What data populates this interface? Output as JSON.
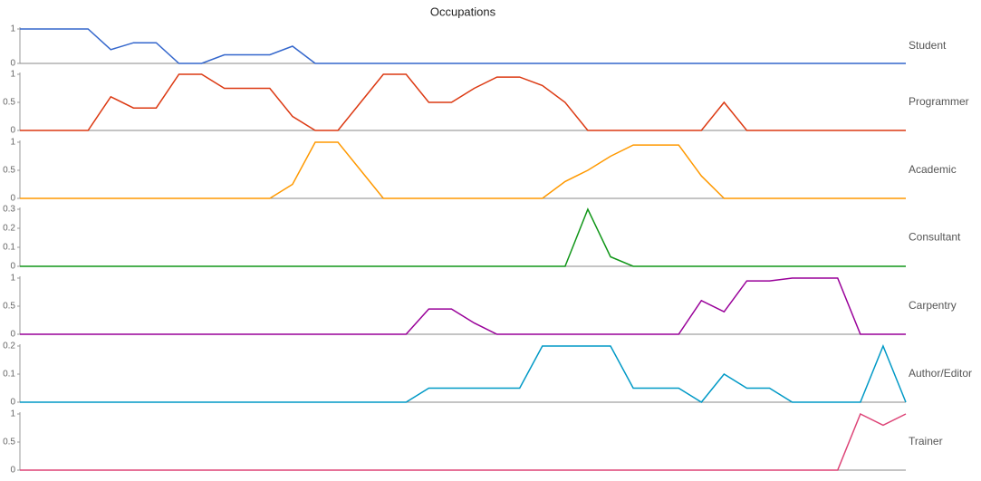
{
  "chart_data": {
    "type": "line",
    "title": "Occupations",
    "series": [
      {
        "name": "Student",
        "color": "#3366cc",
        "ylim": [
          0,
          1
        ],
        "yticks": [
          0,
          1
        ],
        "values": [
          1,
          1,
          1,
          1,
          0.4,
          0.6,
          0.6,
          0,
          0,
          0.25,
          0.25,
          0.25,
          0.5,
          0,
          0,
          0,
          0,
          0,
          0,
          0,
          0,
          0,
          0,
          0,
          0,
          0,
          0,
          0,
          0,
          0,
          0,
          0,
          0,
          0,
          0,
          0,
          0,
          0,
          0,
          0
        ]
      },
      {
        "name": "Programmer",
        "color": "#dc3912",
        "ylim": [
          0,
          1
        ],
        "yticks": [
          0,
          0.5,
          1
        ],
        "values": [
          0,
          0,
          0,
          0,
          0.6,
          0.4,
          0.4,
          1,
          1,
          0.75,
          0.75,
          0.75,
          0.25,
          0,
          0,
          0.5,
          1,
          1,
          0.5,
          0.5,
          0.75,
          0.95,
          0.95,
          0.8,
          0.5,
          0,
          0,
          0,
          0,
          0,
          0,
          0.5,
          0,
          0,
          0,
          0,
          0,
          0,
          0,
          0
        ]
      },
      {
        "name": "Academic",
        "color": "#ff9900",
        "ylim": [
          0,
          1
        ],
        "yticks": [
          0,
          0.5,
          1
        ],
        "values": [
          0,
          0,
          0,
          0,
          0,
          0,
          0,
          0,
          0,
          0,
          0,
          0,
          0.25,
          1,
          1,
          0.5,
          0,
          0,
          0,
          0,
          0,
          0,
          0,
          0,
          0.3,
          0.5,
          0.75,
          0.95,
          0.95,
          0.95,
          0.4,
          0,
          0,
          0,
          0,
          0,
          0,
          0,
          0,
          0
        ]
      },
      {
        "name": "Consultant",
        "color": "#109618",
        "ylim": [
          0,
          0.3
        ],
        "yticks": [
          0,
          0.1,
          0.2,
          0.3
        ],
        "values": [
          0,
          0,
          0,
          0,
          0,
          0,
          0,
          0,
          0,
          0,
          0,
          0,
          0,
          0,
          0,
          0,
          0,
          0,
          0,
          0,
          0,
          0,
          0,
          0,
          0,
          0.3,
          0.05,
          0,
          0,
          0,
          0,
          0,
          0,
          0,
          0,
          0,
          0,
          0,
          0,
          0
        ]
      },
      {
        "name": "Carpentry",
        "color": "#990099",
        "ylim": [
          0,
          1
        ],
        "yticks": [
          0,
          0.5,
          1
        ],
        "values": [
          0,
          0,
          0,
          0,
          0,
          0,
          0,
          0,
          0,
          0,
          0,
          0,
          0,
          0,
          0,
          0,
          0,
          0,
          0.45,
          0.45,
          0.2,
          0,
          0,
          0,
          0,
          0,
          0,
          0,
          0,
          0,
          0.6,
          0.4,
          0.95,
          0.95,
          1,
          1,
          1,
          0,
          0,
          0
        ]
      },
      {
        "name": "Author/Editor",
        "color": "#0099c6",
        "ylim": [
          0,
          0.2
        ],
        "yticks": [
          0,
          0.1,
          0.2
        ],
        "values": [
          0,
          0,
          0,
          0,
          0,
          0,
          0,
          0,
          0,
          0,
          0,
          0,
          0,
          0,
          0,
          0,
          0,
          0,
          0.05,
          0.05,
          0.05,
          0.05,
          0.05,
          0.2,
          0.2,
          0.2,
          0.2,
          0.05,
          0.05,
          0.05,
          0,
          0.1,
          0.05,
          0.05,
          0,
          0,
          0,
          0,
          0.2,
          0
        ]
      },
      {
        "name": "Trainer",
        "color": "#dd4477",
        "ylim": [
          0,
          1
        ],
        "yticks": [
          0,
          0.5,
          1
        ],
        "values": [
          0,
          0,
          0,
          0,
          0,
          0,
          0,
          0,
          0,
          0,
          0,
          0,
          0,
          0,
          0,
          0,
          0,
          0,
          0,
          0,
          0,
          0,
          0,
          0,
          0,
          0,
          0,
          0,
          0,
          0,
          0,
          0,
          0,
          0,
          0,
          0,
          0,
          1,
          0.8,
          1
        ]
      }
    ]
  }
}
